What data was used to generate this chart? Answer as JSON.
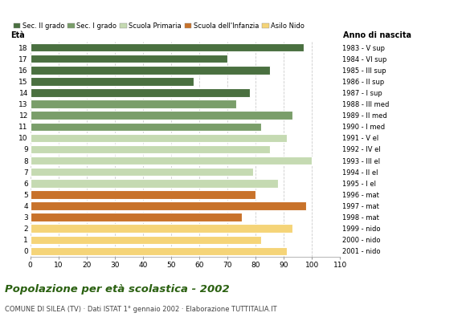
{
  "ages": [
    18,
    17,
    16,
    15,
    14,
    13,
    12,
    11,
    10,
    9,
    8,
    7,
    6,
    5,
    4,
    3,
    2,
    1,
    0
  ],
  "values": [
    97,
    70,
    85,
    58,
    78,
    73,
    93,
    82,
    91,
    85,
    100,
    79,
    88,
    80,
    98,
    75,
    93,
    82,
    91
  ],
  "anno_nascita": [
    "1983 - V sup",
    "1984 - VI sup",
    "1985 - III sup",
    "1986 - II sup",
    "1987 - I sup",
    "1988 - III med",
    "1989 - II med",
    "1990 - I med",
    "1991 - V el",
    "1992 - IV el",
    "1993 - III el",
    "1994 - II el",
    "1995 - I el",
    "1996 - mat",
    "1997 - mat",
    "1998 - mat",
    "1999 - nido",
    "2000 - nido",
    "2001 - nido"
  ],
  "bar_colors": [
    "#4a7040",
    "#4a7040",
    "#4a7040",
    "#4a7040",
    "#4a7040",
    "#7a9e6a",
    "#7a9e6a",
    "#7a9e6a",
    "#c5dab2",
    "#c5dab2",
    "#c5dab2",
    "#c5dab2",
    "#c5dab2",
    "#c8722a",
    "#c8722a",
    "#c8722a",
    "#f5d478",
    "#f5d478",
    "#f5d478"
  ],
  "title": "Popolazione per età scolastica - 2002",
  "subtitle": "COMUNE DI SILEA (TV) · Dati ISTAT 1° gennaio 2002 · Elaborazione TUTTITALIA.IT",
  "xlabel_eta": "Età",
  "xlabel_anno": "Anno di nascita",
  "xlim": [
    0,
    110
  ],
  "xticks": [
    0,
    10,
    20,
    30,
    40,
    50,
    60,
    70,
    80,
    90,
    100,
    110
  ],
  "legend_labels": [
    "Sec. II grado",
    "Sec. I grado",
    "Scuola Primaria",
    "Scuola dell'Infanzia",
    "Asilo Nido"
  ],
  "legend_colors": [
    "#4a7040",
    "#7a9e6a",
    "#c5dab2",
    "#c8722a",
    "#f5d478"
  ],
  "title_color": "#2a6010",
  "subtitle_color": "#444444",
  "bg_color": "#ffffff",
  "grid_color": "#cccccc"
}
